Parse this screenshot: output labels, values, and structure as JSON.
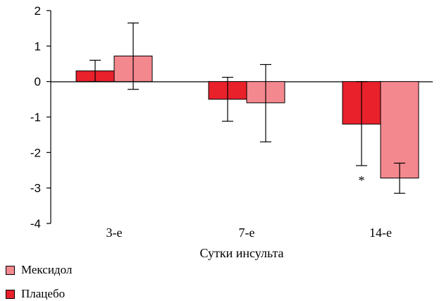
{
  "chart_data": {
    "type": "bar",
    "categories": [
      "3-е",
      "7-е",
      "14-е"
    ],
    "series": [
      {
        "name": "Плацебо",
        "color": "#e8212b",
        "values": [
          0.3,
          -0.5,
          -1.2
        ],
        "error_lower": [
          0.0,
          -1.12,
          -2.37
        ],
        "error_upper": [
          0.6,
          0.12,
          0.0
        ]
      },
      {
        "name": "Мексидол",
        "color": "#f4888f",
        "values": [
          0.72,
          -0.6,
          -2.72
        ],
        "error_lower": [
          -0.22,
          -1.7,
          -3.15
        ],
        "error_upper": [
          1.65,
          0.48,
          -2.3
        ]
      }
    ],
    "ylim": [
      -4,
      2
    ],
    "yticks": [
      2,
      1,
      0,
      -1,
      -2,
      -3,
      -4
    ],
    "xlabel": "Сутки инсульта",
    "ylabel": "",
    "annotations": [
      {
        "text": "*",
        "category": "14-е",
        "series": "Плацебо",
        "y": -2.75
      }
    ],
    "legend": {
      "position": "bottom-left",
      "order": [
        "Мексидол",
        "Плацебо"
      ]
    },
    "grid": false
  }
}
